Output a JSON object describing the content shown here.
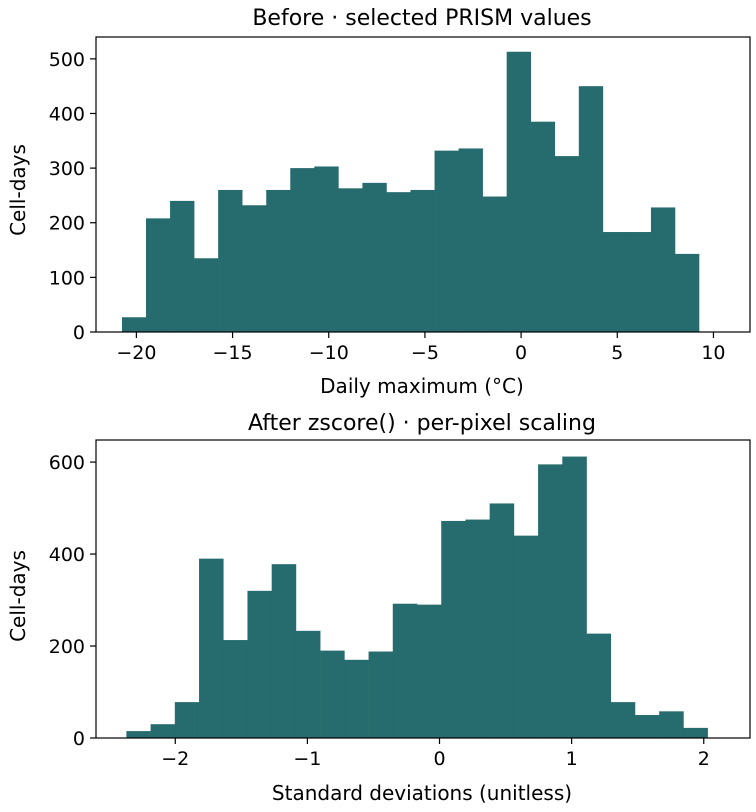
{
  "chart_data": [
    {
      "type": "histogram",
      "title": "Before · selected PRISM values",
      "xlabel": "Daily maximum (°C)",
      "ylabel": "Cell-days",
      "xlim": [
        -22.1,
        11.9
      ],
      "ylim": [
        0,
        540
      ],
      "xticks": [
        -20,
        -15,
        -10,
        -5,
        0,
        5,
        10
      ],
      "xtick_labels": [
        "−20",
        "−15",
        "−10",
        "−5",
        "0",
        "5",
        "10"
      ],
      "yticks": [
        0,
        100,
        200,
        300,
        400,
        500
      ],
      "yticks_labels": [
        "0",
        "100",
        "200",
        "300",
        "400",
        "500"
      ],
      "grid": false,
      "bin_start": -20.75,
      "bin_width": 1.25,
      "values": [
        27,
        208,
        240,
        135,
        260,
        232,
        260,
        300,
        303,
        263,
        273,
        256,
        260,
        332,
        336,
        248,
        513,
        385,
        322,
        450,
        183,
        183,
        228,
        143
      ]
    },
    {
      "type": "histogram",
      "title": "After zscore() · per-pixel scaling",
      "xlabel": "Standard deviations (unitless)",
      "ylabel": "Cell-days",
      "xlim": [
        -2.6,
        2.35
      ],
      "ylim": [
        0,
        648
      ],
      "xticks": [
        -2,
        -1,
        0,
        1,
        2
      ],
      "xtick_labels": [
        "−2",
        "−1",
        "0",
        "1",
        "2"
      ],
      "yticks": [
        0,
        200,
        400,
        600
      ],
      "yticks_labels": [
        "0",
        "200",
        "400",
        "600"
      ],
      "grid": false,
      "bin_start": -2.37,
      "bin_width": 0.1833,
      "values": [
        15,
        30,
        78,
        390,
        213,
        320,
        378,
        233,
        190,
        170,
        188,
        292,
        290,
        472,
        475,
        510,
        440,
        595,
        612,
        227,
        78,
        50,
        58,
        22
      ]
    }
  ],
  "colors": {
    "bar": "#266b6e",
    "axis": "#000000"
  }
}
